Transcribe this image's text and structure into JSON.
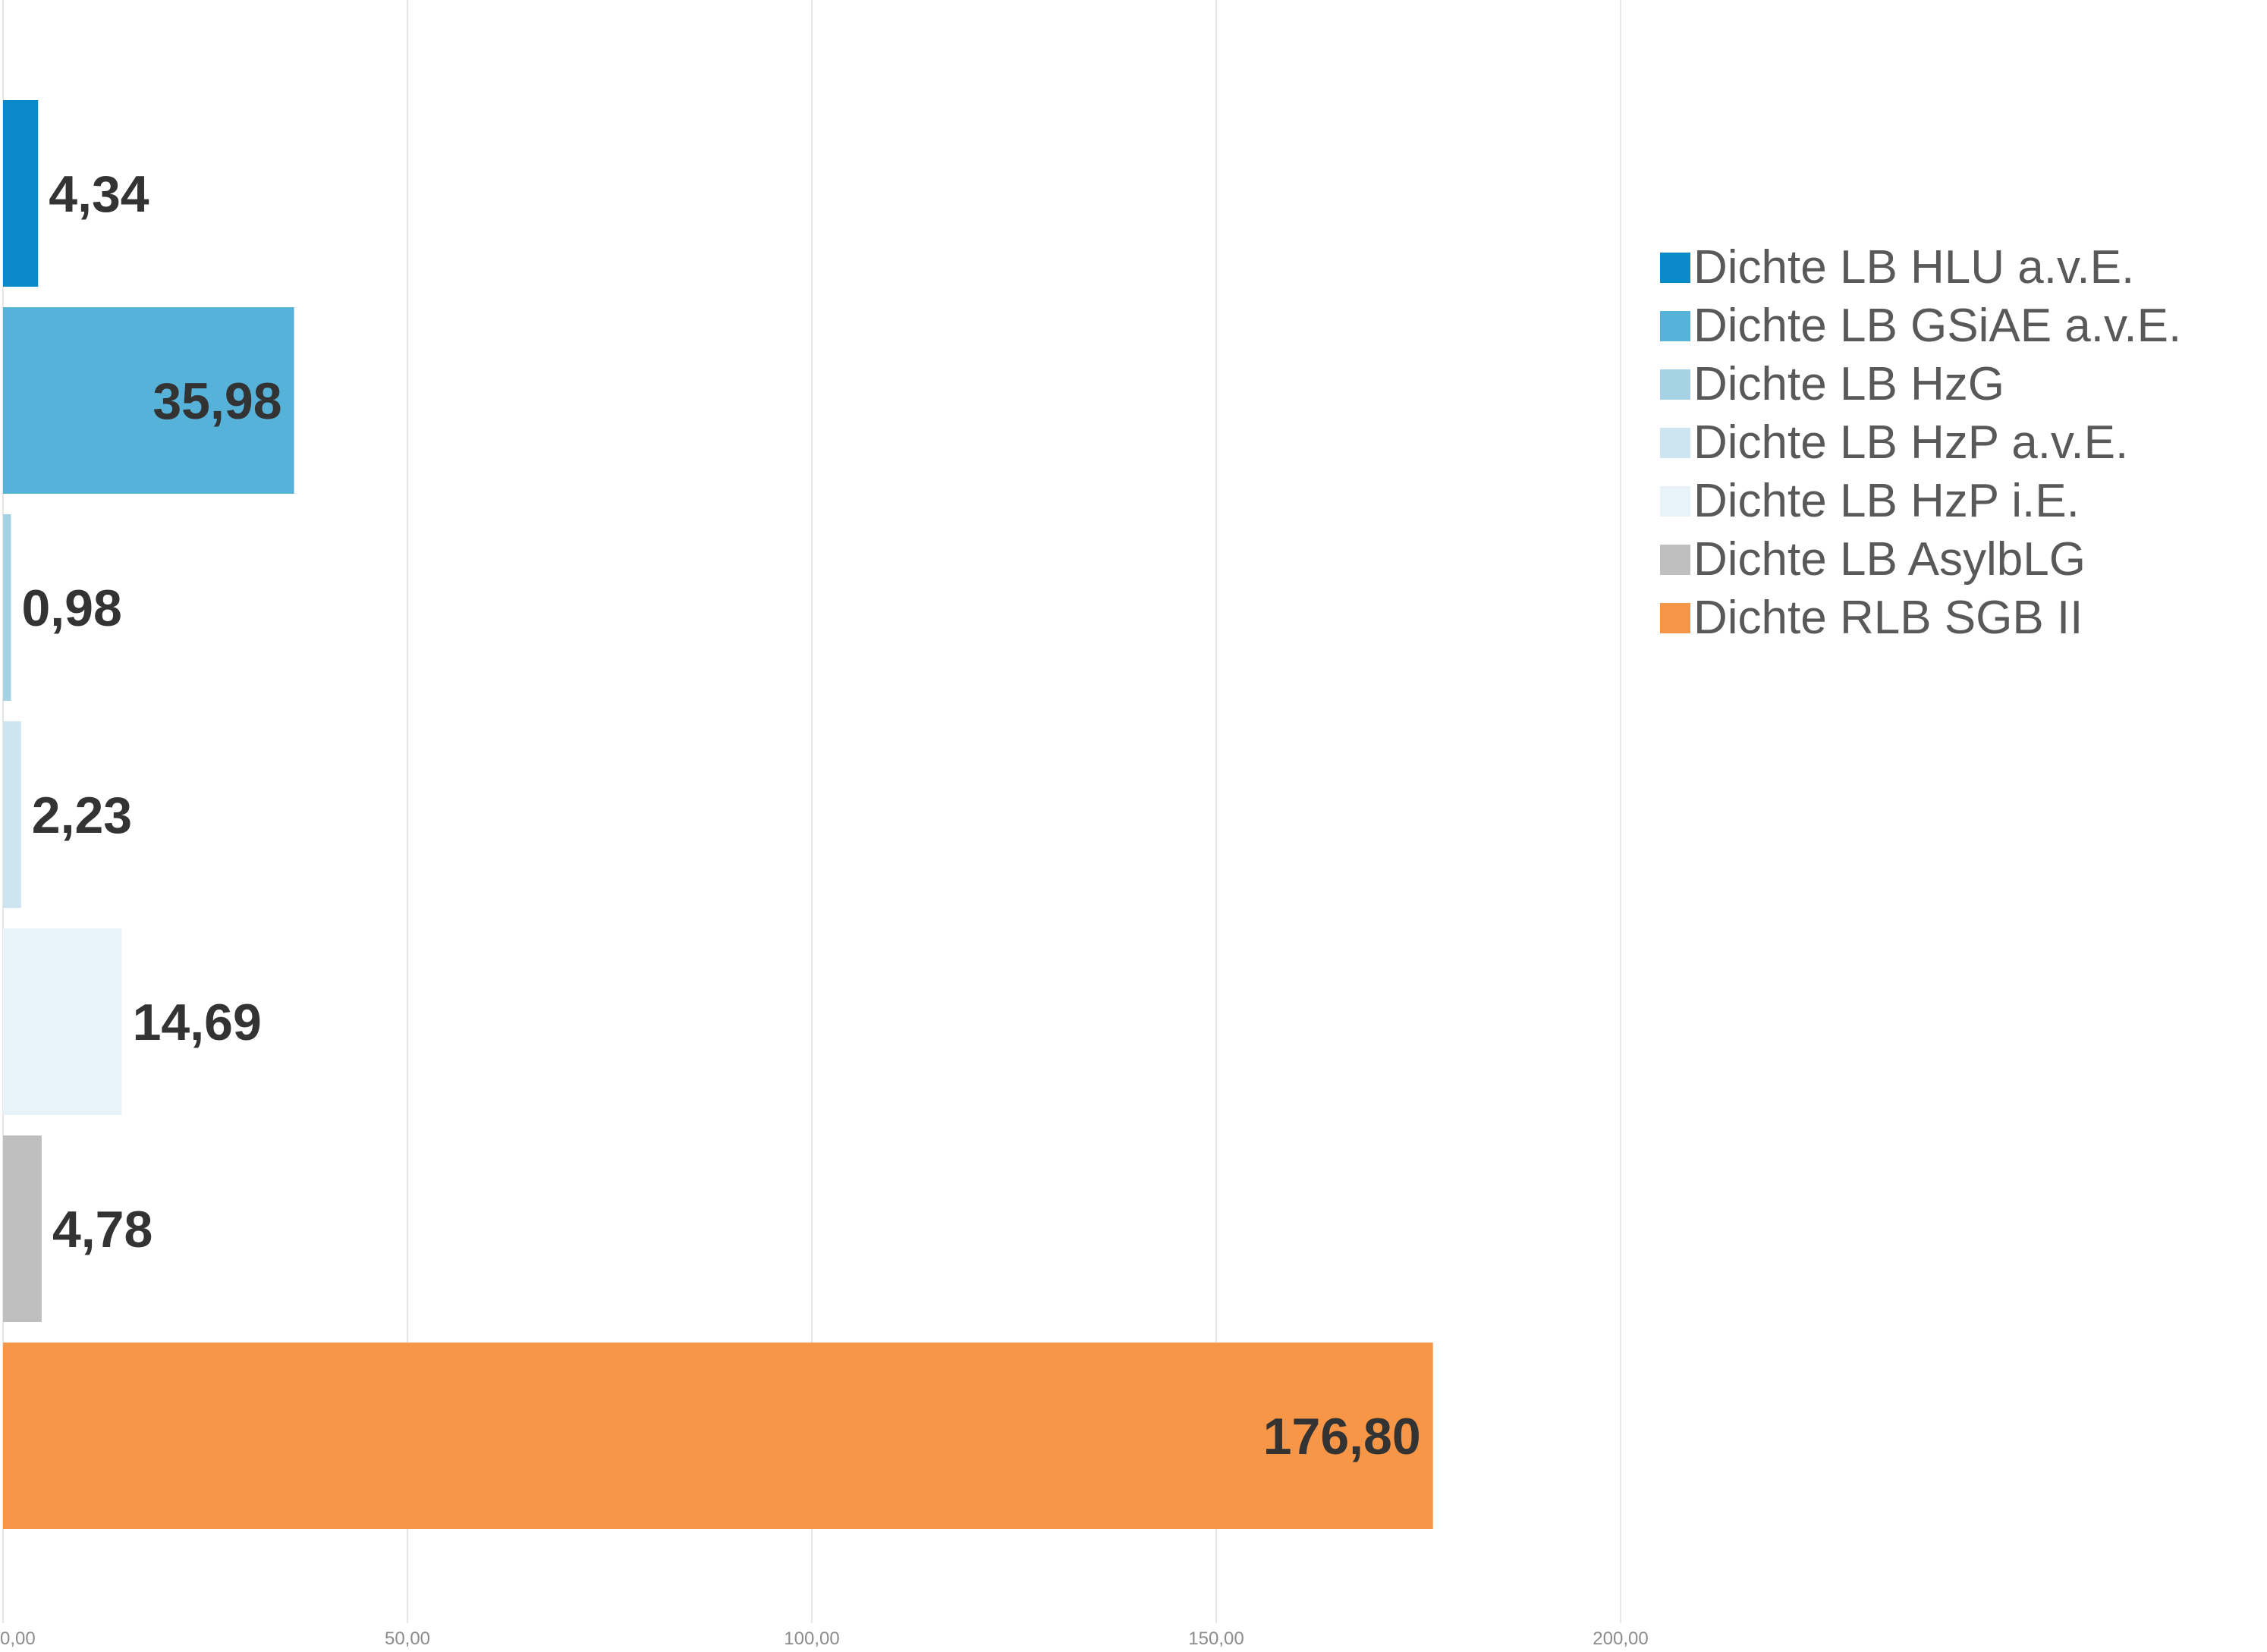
{
  "chart_data": {
    "type": "bar",
    "orientation": "horizontal",
    "grid": true,
    "legend_position": "right",
    "xlim": [
      0,
      200
    ],
    "x_ticks": [
      {
        "value": 0,
        "label": "0,00"
      },
      {
        "value": 50,
        "label": "50,00"
      },
      {
        "value": 100,
        "label": "100,00"
      },
      {
        "value": 150,
        "label": "150,00"
      },
      {
        "value": 200,
        "label": "200,00"
      }
    ],
    "series": [
      {
        "name": "Dichte LB HLU a.v.E.",
        "value": 4.34,
        "label": "4,34",
        "color": "#0a8ac8"
      },
      {
        "name": "Dichte LB GSiAE a.v.E.",
        "value": 35.98,
        "label": "35,98",
        "color": "#56b2d9"
      },
      {
        "name": "Dichte LB HzG",
        "value": 0.98,
        "label": "0,98",
        "color": "#a6d2e6"
      },
      {
        "name": "Dichte LB HzP a.v.E.",
        "value": 2.23,
        "label": "2,23",
        "color": "#cce5f1"
      },
      {
        "name": "Dichte LB HzP i.E.",
        "value": 14.69,
        "label": "14,69",
        "color": "#e8f3f9"
      },
      {
        "name": "Dichte LB AsylbLG",
        "value": 4.78,
        "label": "4,78",
        "color": "#bfbfbf"
      },
      {
        "name": "Dichte RLB SGB II",
        "value": 176.8,
        "label": "176,80",
        "color": "#f79646"
      }
    ]
  }
}
